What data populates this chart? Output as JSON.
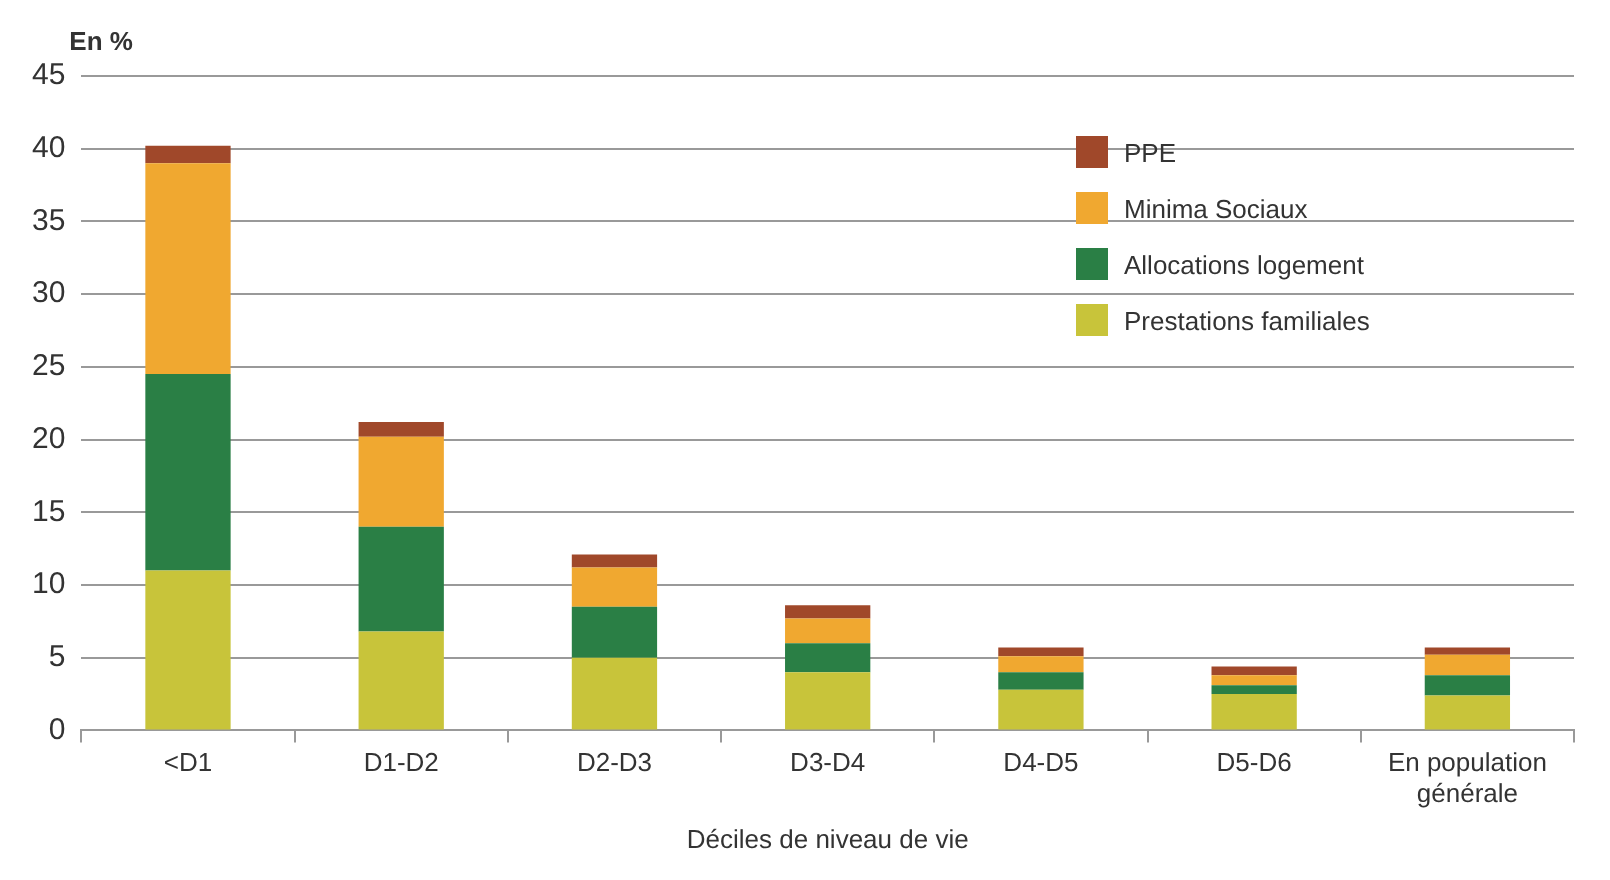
{
  "chart_data": {
    "type": "bar",
    "stacked": true,
    "ylabel": "En %",
    "xlabel": "Déciles de niveau de vie",
    "categories": [
      "<D1",
      "D1-D2",
      "D2-D3",
      "D3-D4",
      "D4-D5",
      "D5-D6",
      "En population générale"
    ],
    "series": [
      {
        "name": "Prestations familiales",
        "color": "#c8c43a",
        "values": [
          11,
          6.8,
          5,
          4.0,
          2.8,
          2.5,
          2.4
        ]
      },
      {
        "name": "Allocations logement",
        "color": "#2a7f45",
        "values": [
          13.5,
          7.2,
          3.5,
          2.0,
          1.2,
          0.6,
          1.4
        ]
      },
      {
        "name": "Minima Sociaux",
        "color": "#f0a830",
        "values": [
          14.5,
          6.2,
          2.7,
          1.7,
          1.1,
          0.7,
          1.4
        ]
      },
      {
        "name": "PPE",
        "color": "#a0482a",
        "values": [
          1.2,
          1.0,
          0.9,
          0.9,
          0.6,
          0.6,
          0.5
        ]
      }
    ],
    "ylim": [
      0,
      45
    ],
    "yticks": [
      0,
      5,
      10,
      15,
      20,
      25,
      30,
      35,
      40,
      45
    ],
    "grid": "y",
    "legend": "top right"
  }
}
